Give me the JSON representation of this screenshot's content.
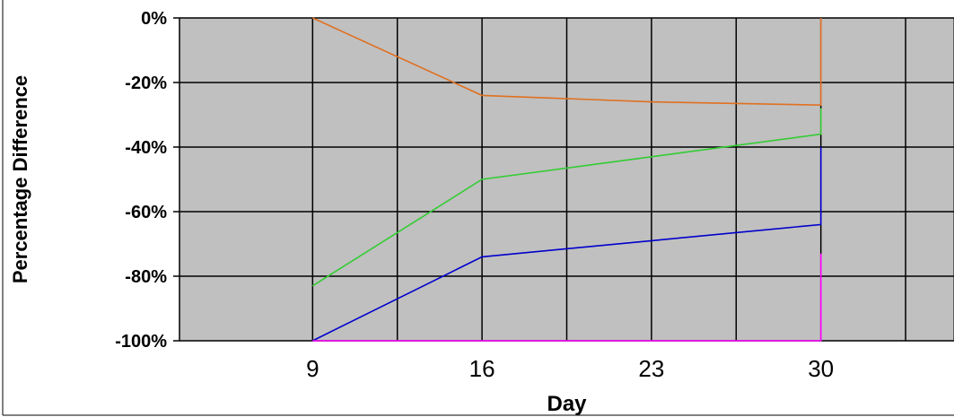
{
  "chart_data": {
    "type": "line",
    "title": "",
    "xlabel": "Day",
    "ylabel": "Percentage Difference",
    "x_ticks": [
      9,
      16,
      23,
      30
    ],
    "y_ticks": [
      "0%",
      "-20%",
      "-40%",
      "-60%",
      "-80%",
      "-100%"
    ],
    "xlim": [
      3.5,
      35.5
    ],
    "ylim": [
      -100,
      0
    ],
    "y_tick_values": [
      0,
      -20,
      -40,
      -60,
      -80,
      -100
    ],
    "x_grid_values": [
      3.5,
      9,
      12.5,
      16,
      19.5,
      23,
      26.5,
      30,
      33.5
    ],
    "grid": true,
    "legend": "none",
    "plot_background": "#c0c0c0",
    "series": [
      {
        "color": "#e07020",
        "x": [
          9,
          16,
          23,
          30,
          30
        ],
        "y": [
          0,
          -24,
          -26,
          -27,
          0
        ]
      },
      {
        "color": "#33cc33",
        "x": [
          9,
          16,
          23,
          30,
          30
        ],
        "y": [
          -83,
          -50,
          -43,
          -36,
          -28
        ]
      },
      {
        "color": "#0000cc",
        "x": [
          9,
          16,
          23,
          30,
          30
        ],
        "y": [
          -100,
          -74,
          -69,
          -64,
          -40
        ]
      },
      {
        "color": "#ff00ff",
        "x": [
          9,
          16,
          23,
          30,
          30
        ],
        "y": [
          -100,
          -100,
          -100,
          -100,
          -73
        ]
      }
    ]
  }
}
